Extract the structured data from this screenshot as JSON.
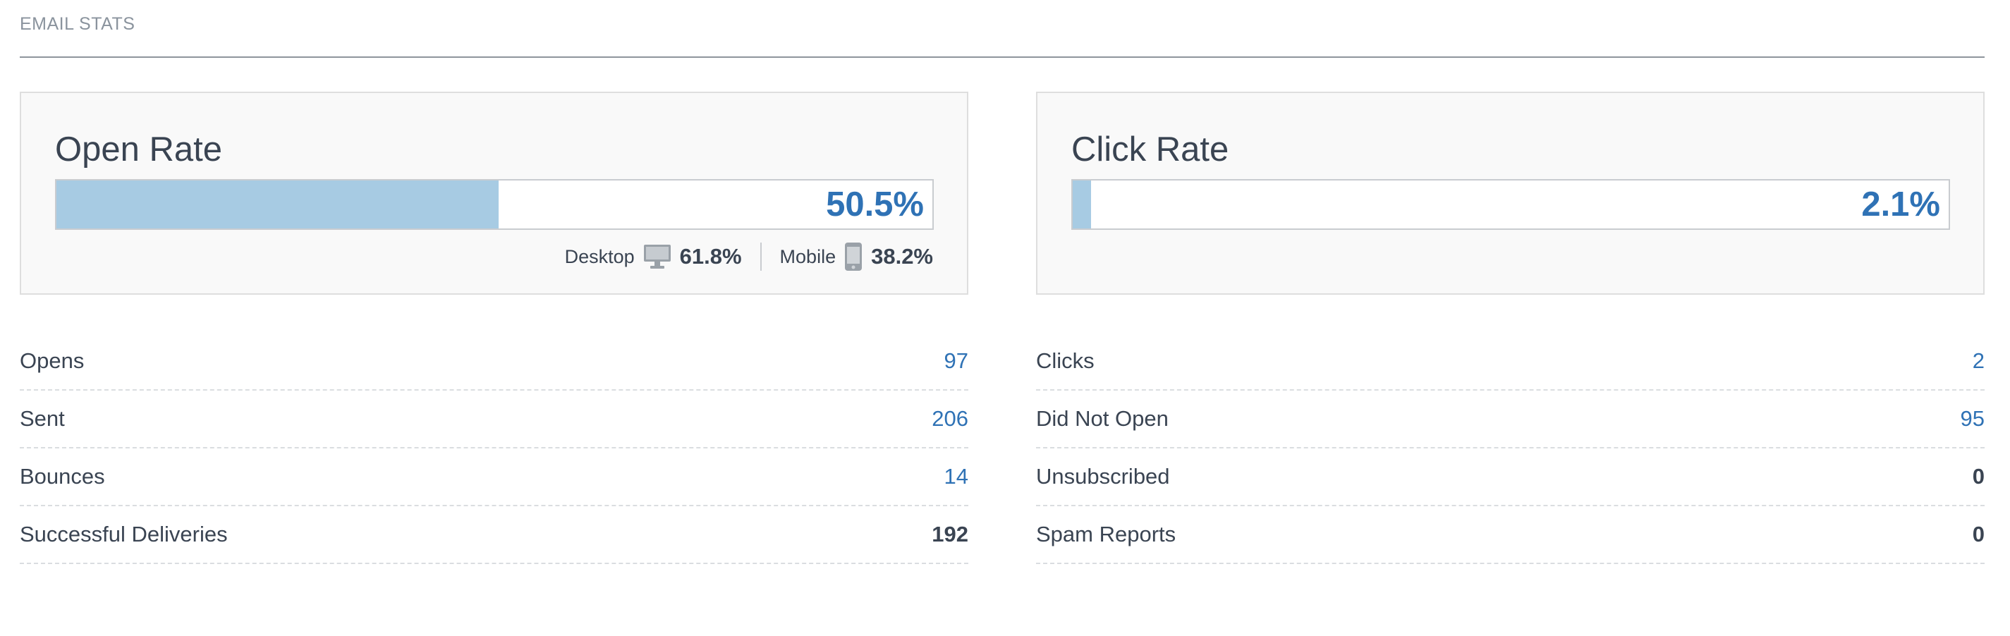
{
  "section_title": "EMAIL STATS",
  "open_rate": {
    "title": "Open Rate",
    "value_label": "50.5%",
    "fill_fraction": 0.505,
    "desktop": {
      "label": "Desktop",
      "icon": "desktop-icon",
      "value": "61.8%"
    },
    "mobile": {
      "label": "Mobile",
      "icon": "mobile-icon",
      "value": "38.2%"
    }
  },
  "click_rate": {
    "title": "Click Rate",
    "value_label": "2.1%",
    "fill_fraction": 0.021
  },
  "left_stats": [
    {
      "label": "Opens",
      "value": "97",
      "color": "blue"
    },
    {
      "label": "Sent",
      "value": "206",
      "color": "blue"
    },
    {
      "label": "Bounces",
      "value": "14",
      "color": "blue"
    },
    {
      "label": "Successful Deliveries",
      "value": "192",
      "color": "dark"
    }
  ],
  "right_stats": [
    {
      "label": "Clicks",
      "value": "2",
      "color": "blue"
    },
    {
      "label": "Did Not Open",
      "value": "95",
      "color": "blue"
    },
    {
      "label": "Unsubscribed",
      "value": "0",
      "color": "dark"
    },
    {
      "label": "Spam Reports",
      "value": "0",
      "color": "dark"
    }
  ],
  "colors": {
    "accent": "#2f72b5",
    "bar_fill": "#a7cbe3",
    "text": "#3a4452"
  }
}
